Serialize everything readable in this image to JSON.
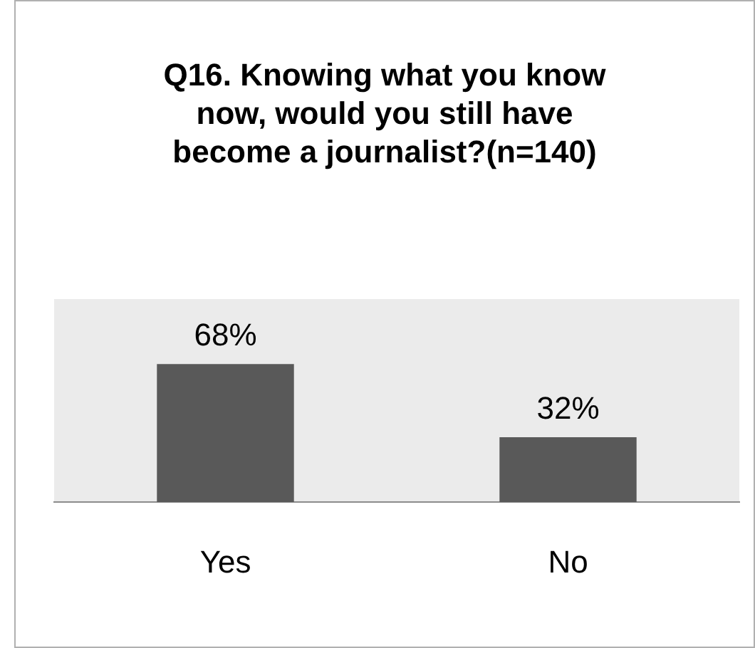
{
  "chart_data": {
    "type": "bar",
    "title": "Q16. Knowing what you know now, would you still have become a journalist?(n=140)",
    "categories": [
      "Yes",
      "No"
    ],
    "values": [
      68,
      32
    ],
    "value_labels": [
      "68%",
      "32%"
    ],
    "color": "#595959",
    "ylim": [
      0,
      100
    ],
    "grid": false,
    "legend": false
  }
}
